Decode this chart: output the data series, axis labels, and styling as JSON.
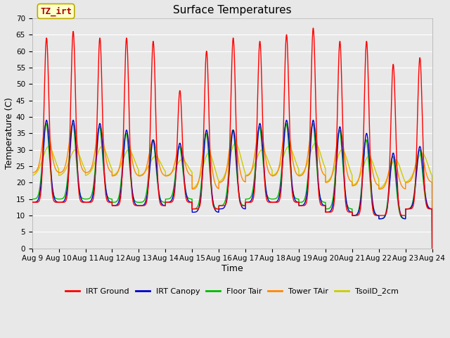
{
  "title": "Surface Temperatures",
  "xlabel": "Time",
  "ylabel": "Temperature (C)",
  "ylim": [
    0,
    70
  ],
  "yticks": [
    0,
    5,
    10,
    15,
    20,
    25,
    30,
    35,
    40,
    45,
    50,
    55,
    60,
    65,
    70
  ],
  "xtick_labels": [
    "Aug 9",
    "Aug 10",
    "Aug 11",
    "Aug 12",
    "Aug 13",
    "Aug 14",
    "Aug 15",
    "Aug 16",
    "Aug 17",
    "Aug 18",
    "Aug 19",
    "Aug 20",
    "Aug 21",
    "Aug 22",
    "Aug 23",
    "Aug 24"
  ],
  "annotation_text": "TZ_irt",
  "annotation_color": "#aa0000",
  "annotation_bg": "#ffffcc",
  "annotation_border": "#bbaa00",
  "series_colors": [
    "#ff0000",
    "#0000cc",
    "#00bb00",
    "#ff8800",
    "#cccc00"
  ],
  "legend_labels": [
    "IRT Ground",
    "IRT Canopy",
    "Floor Tair",
    "Tower TAir",
    "TsoilD_2cm"
  ],
  "background_color": "#e8e8e8",
  "grid_color": "#ffffff",
  "title_fontsize": 11,
  "axis_fontsize": 9,
  "tick_fontsize": 7.5,
  "lw": 1.0,
  "n_days": 15,
  "irt_ground_peaks": [
    64,
    66,
    64,
    64,
    63,
    48,
    60,
    64,
    63,
    65,
    67,
    63,
    63,
    56,
    58
  ],
  "irt_ground_mins": [
    14,
    14,
    14,
    13,
    13,
    14,
    12,
    13,
    14,
    14,
    13,
    11,
    10,
    10,
    12
  ],
  "canopy_peaks": [
    39,
    39,
    38,
    36,
    33,
    32,
    36,
    36,
    38,
    39,
    39,
    37,
    35,
    29,
    31
  ],
  "canopy_mins": [
    14,
    14,
    14,
    13,
    13,
    14,
    11,
    12,
    14,
    14,
    13,
    11,
    10,
    9,
    12
  ],
  "floor_peaks": [
    38,
    38,
    37,
    35,
    33,
    31,
    35,
    36,
    37,
    38,
    38,
    36,
    33,
    28,
    30
  ],
  "floor_mins": [
    15,
    15,
    15,
    14,
    14,
    15,
    12,
    13,
    15,
    15,
    14,
    12,
    10,
    9,
    12
  ],
  "tower_peaks": [
    38,
    38,
    37,
    35,
    33,
    31,
    35,
    36,
    37,
    38,
    38,
    36,
    33,
    28,
    30
  ],
  "tower_mins": [
    23,
    23,
    23,
    22,
    22,
    22,
    18,
    20,
    22,
    22,
    22,
    20,
    19,
    18,
    20
  ],
  "soil_peaks": [
    31,
    30,
    31,
    30,
    28,
    27,
    29,
    32,
    30,
    31,
    32,
    30,
    28,
    27,
    29
  ],
  "soil_mins": [
    22,
    22,
    22,
    22,
    22,
    22,
    18,
    20,
    22,
    22,
    22,
    20,
    19,
    18,
    20
  ]
}
